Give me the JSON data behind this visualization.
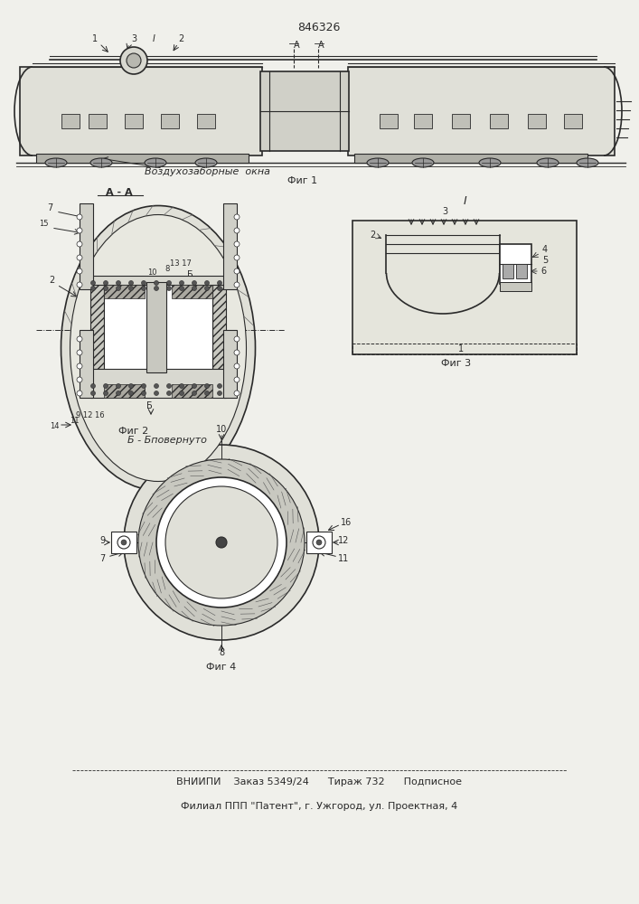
{
  "title": "846326",
  "bg_color": "#f0f0eb",
  "line_color": "#2a2a2a",
  "fig1_label": "Фиг 1",
  "fig2_label": "Фиг 2",
  "fig3_label": "Фиг 3",
  "fig4_label": "Фиг 4",
  "section_label": "А - А",
  "air_label": "Воздухозаборные  окна",
  "bottom_b_label": "Б - Бповернуто",
  "footer1": "ВНИИПИ    Заказ 5349/24      Тираж 732      Подписное",
  "footer2": "Филиал ППП \"Патент\", г. Ужгород, ул. Проектная, 4"
}
